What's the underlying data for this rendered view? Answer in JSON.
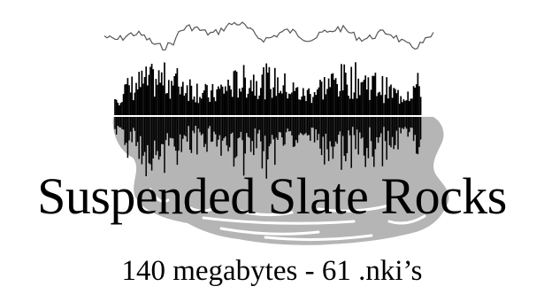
{
  "title": "Suspended Slate Rocks",
  "subtitle": "140 megabytes - 61 .nki’s",
  "colors": {
    "slate": "#b5b5b5",
    "waveform": "#000000",
    "outline": "#555555",
    "background": "#ffffff"
  }
}
